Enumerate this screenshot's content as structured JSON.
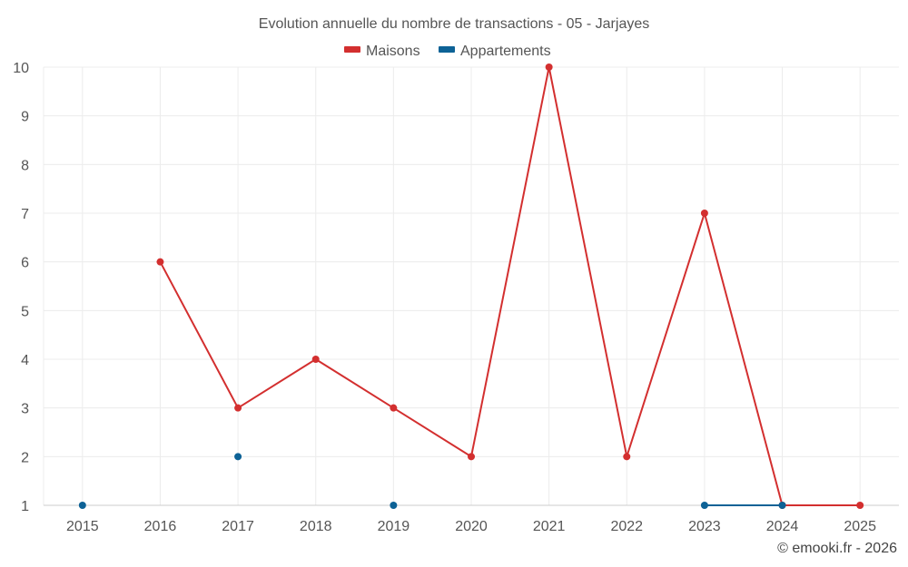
{
  "chart_data": {
    "type": "line",
    "title": "Evolution annuelle du nombre de transactions - 05 - Jarjayes",
    "credit": "© emooki.fr - 2026",
    "categories": [
      "2015",
      "2016",
      "2017",
      "2018",
      "2019",
      "2020",
      "2021",
      "2022",
      "2023",
      "2024",
      "2025"
    ],
    "ylim": [
      1,
      10
    ],
    "yticks": [
      "1",
      "2",
      "3",
      "4",
      "5",
      "6",
      "7",
      "8",
      "9",
      "10"
    ],
    "grid": true,
    "legend_position": "top-center",
    "series": [
      {
        "name": "Maisons",
        "color": "#d32f2f",
        "values": [
          null,
          6,
          3,
          4,
          3,
          2,
          10,
          2,
          7,
          1,
          1
        ]
      },
      {
        "name": "Appartements",
        "color": "#0d6296",
        "values": [
          1,
          null,
          2,
          null,
          1,
          null,
          null,
          null,
          1,
          1,
          null
        ]
      }
    ]
  }
}
